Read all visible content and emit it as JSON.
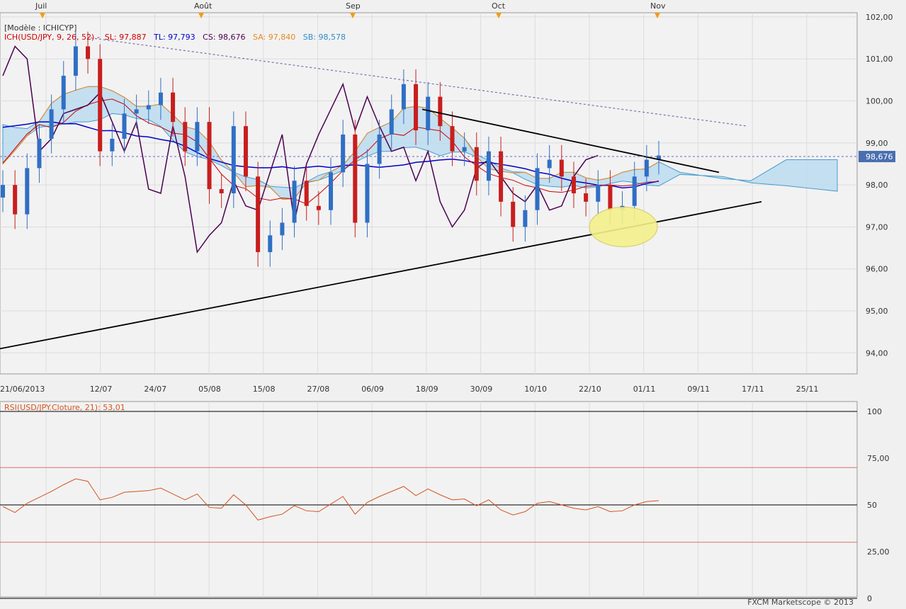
{
  "model_label": "[Modèle : ICHICYP]",
  "indicator": {
    "prefix": "ICH(USD/JPY, 9, 26, 52) -",
    "sl": "SL: 97,887",
    "tl": "TL: 97,793",
    "cs": "CS: 98,676",
    "sa": "SA: 97,840",
    "sb": "SB: 98,578"
  },
  "rsi_label": "RSI(USD/JPY.Cloture, 21): 53,01",
  "footer": "FXCM Marketscope © 2013",
  "current_price": "98,676",
  "colors": {
    "sl": "#cc0000",
    "tl": "#0000cc",
    "cs": "#4b0050",
    "sa": "#e8891e",
    "sb": "#2a8ec8",
    "bull": "#2f6fc4",
    "bear": "#c81e1e",
    "cloud_bull": "#bcdcf0",
    "cloud_bear": "#f5d6b8",
    "rsi": "#d2541e",
    "ellipse": "#f4f08c"
  },
  "chart_data": [
    {
      "type": "candlestick",
      "symbol": "USD/JPY",
      "ylim": [
        93.5,
        102.1
      ],
      "y_ticks": [
        "94,00",
        "95,00",
        "96,00",
        "97,00",
        "98,00",
        "99,00",
        "100,00",
        "101,00",
        "102,00"
      ],
      "x_ticks": [
        "21/06/2013",
        "12/07",
        "24/07",
        "05/08",
        "15/08",
        "27/08",
        "06/09",
        "18/09",
        "30/09",
        "10/10",
        "22/10",
        "01/11",
        "09/11",
        "17/11",
        "25/11"
      ],
      "month_markers": [
        "Juil",
        "Août",
        "Sep",
        "Oct",
        "Nov"
      ],
      "candles_approx_close": [
        98.0,
        97.3,
        98.4,
        99.1,
        99.8,
        100.6,
        101.3,
        101.0,
        98.8,
        99.1,
        99.7,
        99.8,
        99.9,
        100.2,
        99.5,
        98.8,
        99.5,
        97.9,
        97.8,
        99.4,
        98.2,
        96.4,
        96.8,
        97.1,
        98.1,
        97.5,
        97.4,
        98.3,
        99.2,
        97.1,
        98.5,
        99.2,
        99.8,
        100.4,
        99.3,
        100.1,
        99.4,
        98.8,
        98.9,
        98.1,
        98.8,
        97.6,
        97.0,
        97.4,
        98.4,
        98.6,
        98.2,
        97.8,
        97.6,
        98.0,
        97.4,
        97.5,
        98.2,
        98.6,
        98.7
      ],
      "trendlines": {
        "upper_dotted": {
          "from": [
            "21/06/2013",
            101.5
          ],
          "to": [
            "09/11",
            99.4
          ]
        },
        "upper_solid": {
          "from": [
            "18/09",
            99.8
          ],
          "to": [
            "09/11",
            98.3
          ]
        },
        "lower_solid": {
          "from": [
            "21/06/2013",
            94.1
          ],
          "to": [
            "17/11",
            97.6
          ]
        }
      }
    },
    {
      "type": "line",
      "title": "RSI(USD/JPY.Cloture, 21)",
      "ylim": [
        0,
        100
      ],
      "y_ticks": [
        "0",
        "25,00",
        "50",
        "75,00",
        "100"
      ],
      "levels": [
        30,
        50,
        70
      ],
      "last_value": 53.01
    }
  ]
}
